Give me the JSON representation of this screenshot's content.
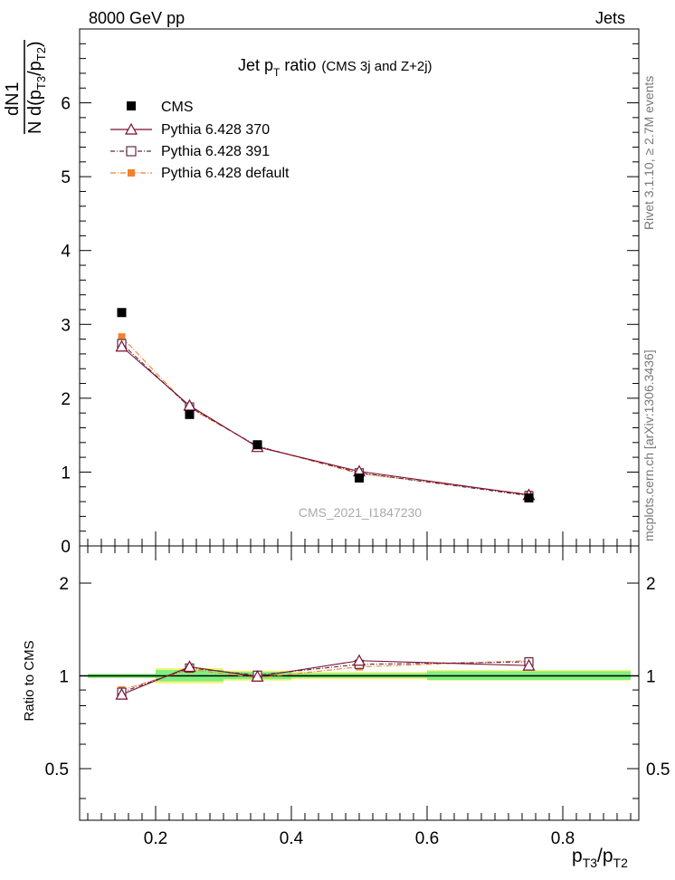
{
  "header": {
    "left": "8000 GeV pp",
    "right": "Jets"
  },
  "side_labels": {
    "rivet": "Rivet 3.1.10, ≥ 2.7M events",
    "mcplots": "mcplots.cern.ch [arXiv:1306.3436]"
  },
  "watermark": "CMS_2021_I1847230",
  "colors": {
    "cms": "#000000",
    "p370": "#7a0c2e",
    "p391": "#5e2b46",
    "pdefault": "#f4812f",
    "band_green": "#7ff07f",
    "band_yellow": "#f5f57a"
  },
  "chart_data": [
    {
      "type": "scatter",
      "title": "Jet pT ratio (CMS 3j and Z+2j)",
      "title_parts": {
        "main": "Jet p",
        "sub": "T",
        "rest": " ratio",
        "small": "(CMS 3j and Z+2j)"
      },
      "ylabel": "1/N dN/d(pT3/pT2)",
      "xlim": [
        0.088,
        0.912
      ],
      "ylim": [
        0,
        7
      ],
      "yticks": [
        0,
        1,
        2,
        3,
        4,
        5,
        6
      ],
      "legend_position": "top-left",
      "series": [
        {
          "name": "CMS",
          "x": [
            0.15,
            0.25,
            0.35,
            0.5,
            0.75
          ],
          "values": [
            3.16,
            1.78,
            1.37,
            0.92,
            0.65
          ]
        },
        {
          "name": "Pythia 6.428 370",
          "x": [
            0.15,
            0.25,
            0.35,
            0.5,
            0.75
          ],
          "values": [
            2.7,
            1.9,
            1.34,
            1.01,
            0.69
          ]
        },
        {
          "name": "Pythia 6.428 391",
          "x": [
            0.15,
            0.25,
            0.35,
            0.5,
            0.75
          ],
          "values": [
            2.74,
            1.88,
            1.35,
            0.99,
            0.68
          ]
        },
        {
          "name": "Pythia 6.428 default",
          "x": [
            0.15,
            0.25,
            0.35,
            0.5,
            0.75
          ],
          "values": [
            2.83,
            1.87,
            1.35,
            0.98,
            0.7
          ]
        }
      ]
    },
    {
      "type": "scatter",
      "ylabel": "Ratio to CMS",
      "xlabel": "pT3/pT2",
      "xlim": [
        0.088,
        0.912
      ],
      "ylim": [
        0.34,
        2.64
      ],
      "yticks": [
        0.5,
        1,
        2
      ],
      "ytick_labels": [
        "0.5",
        "1",
        "2"
      ],
      "xticks": [
        0.2,
        0.4,
        0.6,
        0.8
      ],
      "xtick_labels": [
        "0.2",
        "0.4",
        "0.6",
        "0.8"
      ],
      "bands": {
        "bin_edges": [
          0.1,
          0.2,
          0.3,
          0.4,
          0.6,
          0.9
        ],
        "green": [
          [
            0.985,
            1.015
          ],
          [
            0.96,
            1.045
          ],
          [
            0.975,
            1.03
          ],
          [
            0.985,
            1.02
          ],
          [
            0.97,
            1.035
          ]
        ],
        "yellow": [
          [
            0.985,
            1.015
          ],
          [
            0.945,
            1.06
          ],
          [
            0.965,
            1.04
          ],
          [
            0.975,
            1.03
          ],
          [
            0.965,
            1.045
          ]
        ]
      },
      "series": [
        {
          "name": "Pythia 6.428 370",
          "x": [
            0.15,
            0.25,
            0.35,
            0.5,
            0.75
          ],
          "values": [
            0.87,
            1.07,
            0.995,
            1.12,
            1.08
          ]
        },
        {
          "name": "Pythia 6.428 391",
          "x": [
            0.15,
            0.25,
            0.35,
            0.5,
            0.75
          ],
          "values": [
            0.885,
            1.06,
            1.005,
            1.09,
            1.11
          ]
        },
        {
          "name": "Pythia 6.428 default",
          "x": [
            0.15,
            0.25,
            0.35,
            0.5,
            0.75
          ],
          "values": [
            0.9,
            1.05,
            0.985,
            1.07,
            1.12
          ]
        }
      ]
    }
  ]
}
